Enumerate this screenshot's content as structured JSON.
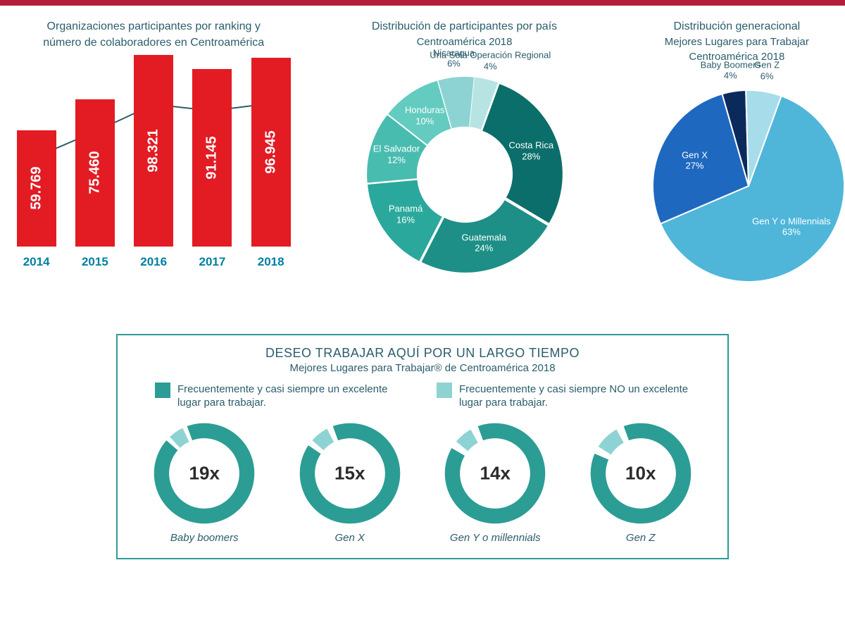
{
  "colors": {
    "accent_bar": "#b51e3a",
    "bar_fill": "#e31b23",
    "line_stroke": "#2b5d6b",
    "text_primary": "#2b5d6b",
    "category_label": "#007fa3",
    "teal_dark": "#2b9d94",
    "teal_light": "#8ed3d3",
    "background": "#ffffff"
  },
  "bar_chart": {
    "title_line1": "Organizaciones participantes por ranking y",
    "title_line2": "número de colaboradores en Centroamérica",
    "type": "bar+line",
    "categories": [
      "2014",
      "2015",
      "2016",
      "2017",
      "2018"
    ],
    "bar_values": [
      59769,
      75460,
      98321,
      91145,
      96945
    ],
    "bar_labels": [
      "59.769",
      "75.460",
      "98.321",
      "91.145",
      "96.945"
    ],
    "bar_color": "#e31b23",
    "bar_label_color": "#ffffff",
    "bar_label_fontsize": 20,
    "line_values": [
      103,
      127,
      153,
      147,
      154
    ],
    "line_color": "#2b5d6b",
    "line_marker": "circle",
    "line_width": 2,
    "category_label_color": "#007fa3",
    "category_label_fontsize": 17,
    "bar_y_max": 100000,
    "line_y_max": 200
  },
  "donut_chart": {
    "title_line1": "Distribución de participantes por país",
    "title_line2": "Centroamérica 2018",
    "type": "donut",
    "inner_radius_ratio": 0.48,
    "segments": [
      {
        "label": "Costa Rica",
        "percent": 28,
        "color": "#0b6e6a",
        "label_inside": true
      },
      {
        "label": "Guatemala",
        "percent": 24,
        "color": "#1d8f86",
        "label_inside": true
      },
      {
        "label": "Panamá",
        "percent": 16,
        "color": "#2aa89c",
        "label_inside": true
      },
      {
        "label": "El Salvador",
        "percent": 12,
        "color": "#49bcb0",
        "label_inside": true
      },
      {
        "label": "Honduras",
        "percent": 10,
        "color": "#63cbc0",
        "label_inside": true
      },
      {
        "label": "Nicaragua",
        "percent": 6,
        "color": "#8ed3d3",
        "label_inside": false
      },
      {
        "label": "Una Sola Operación Regional",
        "percent": 4,
        "color": "#b7e3e3",
        "label_inside": false
      }
    ]
  },
  "pie_chart": {
    "title_line1": "Distribución generacional",
    "title_line2": "Mejores Lugares para Trabajar",
    "title_line3": "Centroamérica 2018",
    "type": "pie",
    "segments": [
      {
        "label": "Gen Y o Millennials",
        "percent": 63,
        "color": "#4fb6d9",
        "label_inside": true
      },
      {
        "label": "Gen X",
        "percent": 27,
        "color": "#1f68c0",
        "label_inside": true
      },
      {
        "label": "Baby Boomers",
        "percent": 4,
        "color": "#0b2a5c",
        "label_inside": false
      },
      {
        "label": "Gen Z",
        "percent": 6,
        "color": "#a7dcea",
        "label_inside": false
      }
    ]
  },
  "bottom_panel": {
    "title": "DESEO TRABAJAR AQUÍ POR UN LARGO TIEMPO",
    "subtitle": "Mejores Lugares para Trabajar® de Centroamérica 2018",
    "border_color": "#2b9d94",
    "legend": [
      {
        "color": "#2b9d94",
        "text": "Frecuentemente y casi siempre un excelente lugar para trabajar."
      },
      {
        "color": "#8ed3d3",
        "text": "Frecuentemente y casi siempre NO un excelente lugar para trabajar."
      }
    ],
    "gauges": [
      {
        "label": "Baby boomers",
        "value": "19x",
        "main_pct": 92,
        "alt_pct": 5
      },
      {
        "label": "Gen X",
        "value": "15x",
        "main_pct": 90,
        "alt_pct": 6
      },
      {
        "label": "Gen Y o millennials",
        "value": "14x",
        "main_pct": 89,
        "alt_pct": 6
      },
      {
        "label": "Gen Z",
        "value": "10x",
        "main_pct": 87,
        "alt_pct": 8
      }
    ],
    "gauge_colors": {
      "main": "#2b9d94",
      "alt": "#8ed3d3",
      "gap": "#ffffff"
    },
    "gauge_thickness": 0.3
  }
}
